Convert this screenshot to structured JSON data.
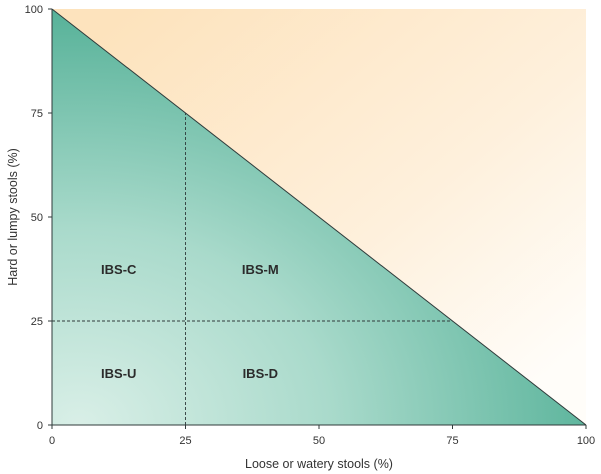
{
  "chart_data": {
    "type": "scatter",
    "xlabel": "Loose or watery stools (%)",
    "ylabel": "Hard or lumpy stools (%)",
    "xlim": [
      0,
      100
    ],
    "ylim": [
      0,
      100
    ],
    "xticks": [
      "0",
      "25",
      "50",
      "75",
      "100"
    ],
    "yticks": [
      "0",
      "25",
      "50",
      "75",
      "100"
    ],
    "grid": false,
    "boundary": {
      "x": [
        0,
        100
      ],
      "y": [
        100,
        0
      ]
    },
    "thresholds": {
      "x": 25,
      "y": 25
    },
    "regions": [
      {
        "label": "IBS-C",
        "x": 12.5,
        "y": 37.5
      },
      {
        "label": "IBS-M",
        "x": 39,
        "y": 37.5
      },
      {
        "label": "IBS-U",
        "x": 12.5,
        "y": 12.5
      },
      {
        "label": "IBS-D",
        "x": 39,
        "y": 12.5
      }
    ],
    "colors": {
      "feasible_region": "#6cbfa8",
      "infeasible_region": "#fde9c8",
      "lines": "#2f3a3a"
    }
  }
}
